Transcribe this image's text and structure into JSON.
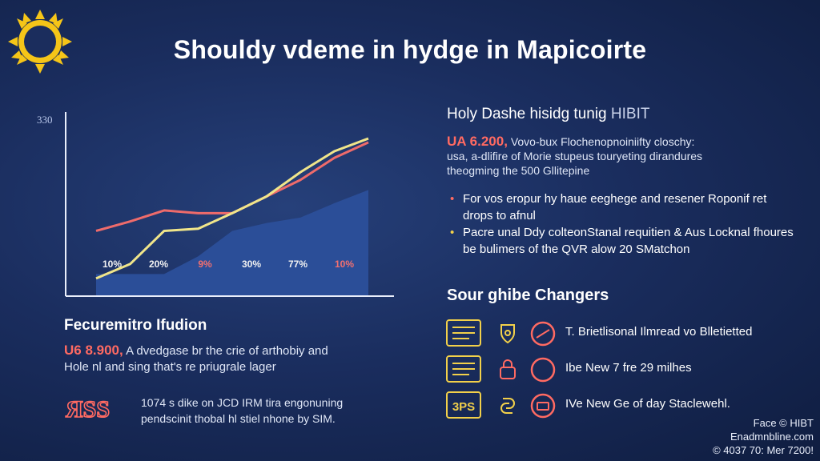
{
  "title": "Shouldy vdeme in hydge in Mapicoirte",
  "colors": {
    "accent_red": "#ff6a62",
    "accent_yellow": "#f2d04a",
    "area_blue": "#2b4e98",
    "sun": "#f5c518"
  },
  "chart_data": {
    "type": "line",
    "title": "",
    "xlabel": "",
    "ylabel": "",
    "y_tick_label": "330",
    "ylim": [
      0,
      330
    ],
    "x": [
      0,
      1,
      2,
      3,
      4,
      5,
      6,
      7,
      8
    ],
    "series": [
      {
        "color": "#ee6b6b",
        "values": [
          118,
          135,
          155,
          150,
          150,
          180,
          210,
          250,
          278
        ]
      },
      {
        "color": "#f0e58a",
        "values": [
          32,
          58,
          118,
          122,
          150,
          180,
          224,
          262,
          285
        ]
      },
      {
        "type": "area",
        "color": "#2b4e98",
        "values": [
          40,
          40,
          40,
          72,
          118,
          132,
          142,
          168,
          192
        ]
      }
    ],
    "bar_labels": [
      {
        "text": "10%",
        "color": "#f2f2f2"
      },
      {
        "text": "20%",
        "color": "#f2f2f2"
      },
      {
        "text": "9%",
        "color": "#f07070"
      },
      {
        "text": "30%",
        "color": "#f2f2f2"
      },
      {
        "text": "77%",
        "color": "#f2f2f2"
      },
      {
        "text": "10%",
        "color": "#f07070"
      }
    ]
  },
  "left": {
    "heading": "Fecuremitro Ifudion",
    "value": "U6 8.900,",
    "line1": "A dvedgase br the crie of arthobiy and",
    "line2": "Hole nl and sing that's re priugrale lager",
    "footer_icon_text": "ЯSS",
    "footer_line1": "1074 s dike on JCD IRM tira engonuning",
    "footer_line2": "pendscinit thobal hl stiel nhone by SIM."
  },
  "right": {
    "heading": "Holy Dashe hisidg tunig",
    "heading_suffix": "HIBIT",
    "value": "UA 6.200,",
    "line1": "Vovo-bux Flochenopnoiniifty closchy:",
    "line2": "usa, a-dlifire of Morie stupeus touryeting dirandures",
    "line3": "theogming the 500 Gllitepine",
    "bullets": [
      {
        "text": "For vos eropur hy haue eeghege and resener Roponif ret drops to afnul"
      },
      {
        "text": "Pacre unal Ddy colteonStanal requitien & Aus Locknal fhoures be bulimers of the QVR alow 20 SMatchon"
      }
    ]
  },
  "changers": {
    "heading": "Sour ghibe Changers",
    "rows": [
      {
        "doc_icon": "document-list-icon",
        "text": "T. Brietlisonal Ilmread vo Blletietted"
      },
      {
        "doc_icon": "document-list-icon",
        "text": "Ibe New 7 fre 29 milhes"
      },
      {
        "doc_icon": "document-label-icon",
        "doc_label": "3PS",
        "text": "IVe New Ge of day Staclewehl."
      }
    ]
  },
  "credit": {
    "line1": "Face © HIBT",
    "line2": "Enadmnbline.com",
    "line3": "© 4037 70: Mer 7200!"
  }
}
